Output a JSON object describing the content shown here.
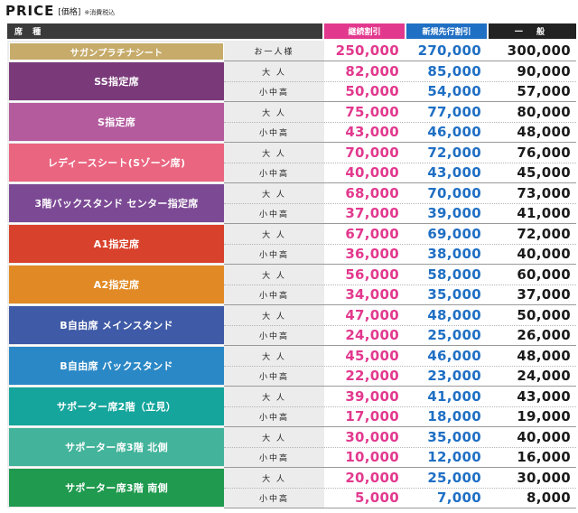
{
  "title": {
    "main": "PRICE",
    "sub": "[価格]",
    "note": "※消費税込"
  },
  "header": {
    "seat": "席 種",
    "col1": "継続割引",
    "col2": "新規先行割引",
    "col3": "一 般"
  },
  "groups": [
    {
      "name": "サガンプラチナシート",
      "color": "#c6ab6a",
      "rows": [
        {
          "who": "お一人様",
          "v1": "250,000",
          "v2": "270,000",
          "v3": "300,000"
        }
      ]
    },
    {
      "name": "SS指定席",
      "color": "#7a3a7a",
      "rows": [
        {
          "who": "大 人",
          "v1": "82,000",
          "v2": "85,000",
          "v3": "90,000"
        },
        {
          "who": "小中高",
          "v1": "50,000",
          "v2": "54,000",
          "v3": "57,000"
        }
      ]
    },
    {
      "name": "S指定席",
      "color": "#b45b9e",
      "rows": [
        {
          "who": "大 人",
          "v1": "75,000",
          "v2": "77,000",
          "v3": "80,000"
        },
        {
          "who": "小中高",
          "v1": "43,000",
          "v2": "46,000",
          "v3": "48,000"
        }
      ]
    },
    {
      "name": "レディースシート(Sゾーン席)",
      "color": "#ea6580",
      "rows": [
        {
          "who": "大 人",
          "v1": "70,000",
          "v2": "72,000",
          "v3": "76,000"
        },
        {
          "who": "小中高",
          "v1": "40,000",
          "v2": "43,000",
          "v3": "45,000"
        }
      ]
    },
    {
      "name": "3階バックスタンド センター指定席",
      "color": "#7c4a94",
      "rows": [
        {
          "who": "大 人",
          "v1": "68,000",
          "v2": "70,000",
          "v3": "73,000"
        },
        {
          "who": "小中高",
          "v1": "37,000",
          "v2": "39,000",
          "v3": "41,000"
        }
      ]
    },
    {
      "name": "A1指定席",
      "color": "#d8412b",
      "rows": [
        {
          "who": "大 人",
          "v1": "67,000",
          "v2": "69,000",
          "v3": "72,000"
        },
        {
          "who": "小中高",
          "v1": "36,000",
          "v2": "38,000",
          "v3": "40,000"
        }
      ]
    },
    {
      "name": "A2指定席",
      "color": "#e18a25",
      "rows": [
        {
          "who": "大 人",
          "v1": "56,000",
          "v2": "58,000",
          "v3": "60,000"
        },
        {
          "who": "小中高",
          "v1": "34,000",
          "v2": "35,000",
          "v3": "37,000"
        }
      ]
    },
    {
      "name": "B自由席 メインスタンド",
      "color": "#3f5aa6",
      "rows": [
        {
          "who": "大 人",
          "v1": "47,000",
          "v2": "48,000",
          "v3": "50,000"
        },
        {
          "who": "小中高",
          "v1": "24,000",
          "v2": "25,000",
          "v3": "26,000"
        }
      ]
    },
    {
      "name": "B自由席 バックスタンド",
      "color": "#2b88c6",
      "rows": [
        {
          "who": "大 人",
          "v1": "45,000",
          "v2": "46,000",
          "v3": "48,000"
        },
        {
          "who": "小中高",
          "v1": "22,000",
          "v2": "23,000",
          "v3": "24,000"
        }
      ]
    },
    {
      "name": "サポーター席2階（立見）",
      "color": "#15a59c",
      "rows": [
        {
          "who": "大 人",
          "v1": "39,000",
          "v2": "41,000",
          "v3": "43,000"
        },
        {
          "who": "小中高",
          "v1": "17,000",
          "v2": "18,000",
          "v3": "19,000"
        }
      ]
    },
    {
      "name": "サポーター席3階 北側",
      "color": "#43b49b",
      "rows": [
        {
          "who": "大 人",
          "v1": "30,000",
          "v2": "35,000",
          "v3": "40,000"
        },
        {
          "who": "小中高",
          "v1": "10,000",
          "v2": "12,000",
          "v3": "16,000"
        }
      ]
    },
    {
      "name": "サポーター席3階 南側",
      "color": "#1f9a4e",
      "rows": [
        {
          "who": "大 人",
          "v1": "20,000",
          "v2": "25,000",
          "v3": "30,000"
        },
        {
          "who": "小中高",
          "v1": "5,000",
          "v2": "7,000",
          "v3": "8,000"
        }
      ]
    }
  ]
}
